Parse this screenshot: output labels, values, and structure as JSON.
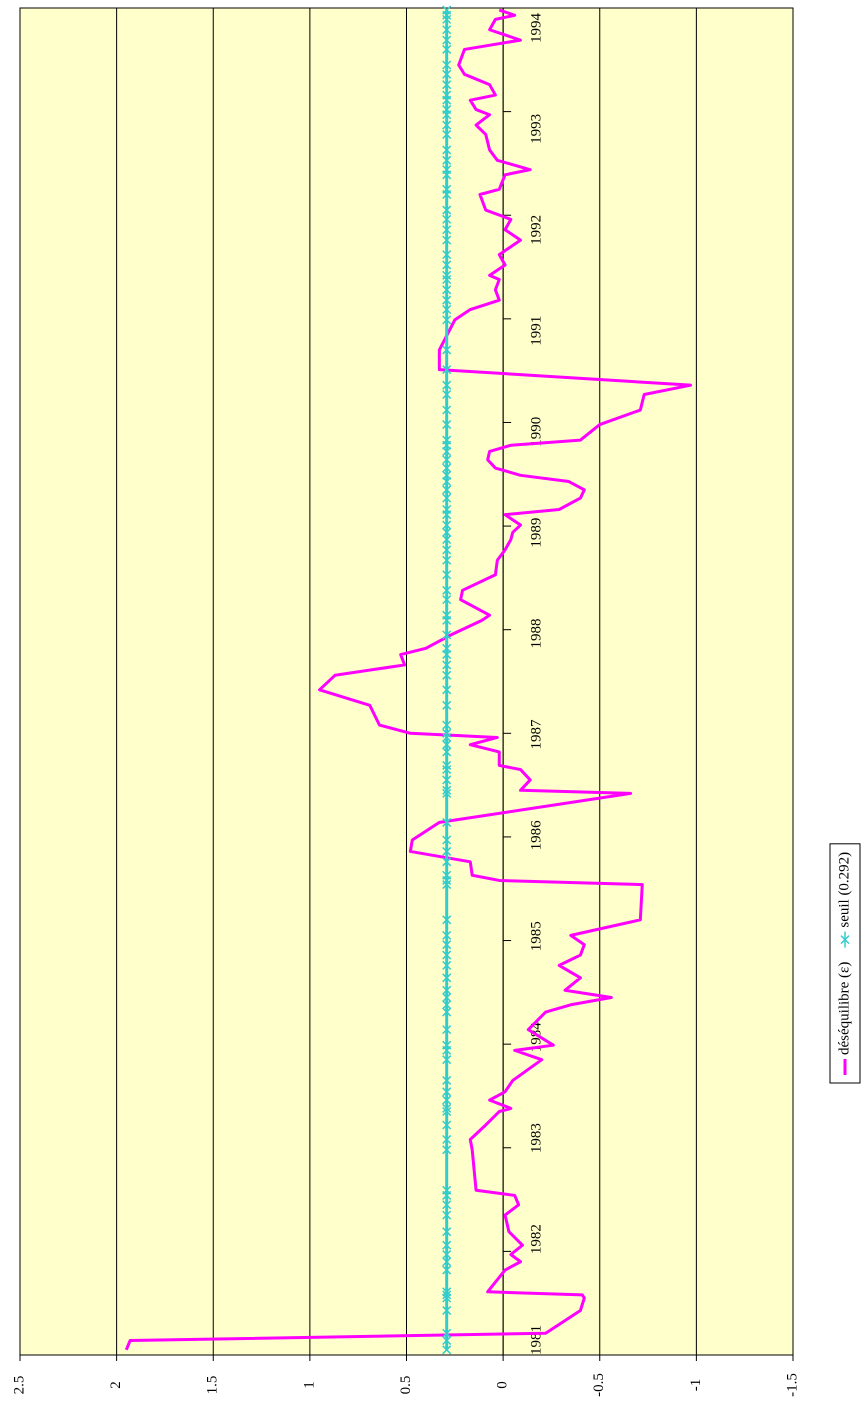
{
  "chart_data": {
    "type": "line",
    "orientation": "rotated",
    "x": [
      1981.05,
      1981.14,
      1981.21,
      1981.43,
      1981.55,
      1981.58,
      1981.61,
      1981.82,
      1981.9,
      1981.97,
      1982.06,
      1982.19,
      1982.35,
      1982.45,
      1982.54,
      1982.59,
      1982.98,
      1983.08,
      1983.22,
      1983.35,
      1983.38,
      1983.46,
      1983.54,
      1983.65,
      1983.85,
      1983.94,
      1983.99,
      1984.14,
      1984.31,
      1984.38,
      1984.45,
      1984.52,
      1984.64,
      1984.76,
      1984.86,
      1984.96,
      1985.05,
      1985.2,
      1985.54,
      1985.58,
      1985.63,
      1985.76,
      1985.86,
      1985.97,
      1986.14,
      1986.42,
      1986.45,
      1986.55,
      1986.65,
      1986.69,
      1986.82,
      1986.89,
      1986.96,
      1987.0,
      1987.08,
      1987.27,
      1987.42,
      1987.56,
      1987.66,
      1987.76,
      1987.82,
      1987.95,
      1988.09,
      1988.14,
      1988.29,
      1988.38,
      1988.53,
      1988.67,
      1988.77,
      1988.87,
      1988.94,
      1989.01,
      1989.11,
      1989.16,
      1989.27,
      1989.35,
      1989.43,
      1989.49,
      1989.56,
      1989.64,
      1989.72,
      1989.78,
      1989.83,
      1989.98,
      1990.12,
      1990.27,
      1990.36,
      1990.51,
      1990.7,
      1990.99,
      1991.09,
      1991.18,
      1991.28,
      1991.38,
      1991.42,
      1991.52,
      1991.62,
      1991.76,
      1991.86,
      1991.96,
      1992.05,
      1992.2,
      1992.25,
      1992.39,
      1992.44,
      1992.53,
      1992.63,
      1992.78,
      1992.87,
      1992.97,
      1993.02,
      1993.11,
      1993.16,
      1993.26,
      1993.36,
      1993.45,
      1993.6,
      1993.69,
      1993.79,
      1993.89,
      1993.93,
      1993.98
    ],
    "series": [
      {
        "name": "déséquilibre (ε)",
        "color": "#ff00ff",
        "marker": "none",
        "values": [
          1.95,
          1.93,
          -0.22,
          -0.4,
          -0.42,
          -0.41,
          0.08,
          -0.01,
          -0.09,
          -0.04,
          -0.1,
          -0.03,
          -0.01,
          -0.08,
          -0.06,
          0.14,
          0.16,
          0.17,
          0.09,
          0.02,
          -0.04,
          0.07,
          -0.01,
          -0.05,
          -0.2,
          -0.06,
          -0.26,
          -0.13,
          -0.22,
          -0.35,
          -0.56,
          -0.32,
          -0.4,
          -0.29,
          -0.4,
          -0.42,
          -0.35,
          -0.71,
          -0.72,
          0.02,
          0.16,
          0.17,
          0.48,
          0.47,
          0.33,
          -0.66,
          -0.09,
          -0.14,
          -0.09,
          0.02,
          0.02,
          0.17,
          0.03,
          0.48,
          0.64,
          0.69,
          0.95,
          0.87,
          0.51,
          0.53,
          0.4,
          0.27,
          0.11,
          0.07,
          0.22,
          0.21,
          0.04,
          0.03,
          -0.01,
          -0.04,
          -0.05,
          -0.09,
          -0.01,
          -0.29,
          -0.4,
          -0.42,
          -0.34,
          -0.09,
          0.04,
          0.08,
          0.07,
          -0.04,
          -0.4,
          -0.5,
          -0.71,
          -0.73,
          -0.97,
          0.33,
          0.33,
          0.25,
          0.17,
          0.02,
          0.04,
          0.02,
          0.07,
          -0.01,
          0.02,
          -0.09,
          -0.01,
          -0.04,
          0.09,
          0.12,
          0.02,
          -0.01,
          -0.14,
          0.03,
          0.07,
          0.09,
          0.14,
          0.07,
          0.14,
          0.17,
          0.04,
          0.07,
          0.2,
          0.23,
          0.2,
          -0.09,
          0.07,
          0.04,
          -0.06,
          0.02
        ]
      },
      {
        "name": "seuil (0.292)",
        "color": "#33cccc",
        "marker": "x",
        "values": [
          0.292,
          0.292,
          0.292,
          0.292,
          0.292,
          0.292,
          0.292,
          0.292,
          0.292,
          0.292,
          0.292,
          0.292,
          0.292,
          0.292,
          0.292,
          0.292,
          0.292,
          0.292,
          0.292,
          0.292,
          0.292,
          0.292,
          0.292,
          0.292,
          0.292,
          0.292,
          0.292,
          0.292,
          0.292,
          0.292,
          0.292,
          0.292,
          0.292,
          0.292,
          0.292,
          0.292,
          0.292,
          0.292,
          0.292,
          0.292,
          0.292,
          0.292,
          0.292,
          0.292,
          0.292,
          0.292,
          0.292,
          0.292,
          0.292,
          0.292,
          0.292,
          0.292,
          0.292,
          0.292,
          0.292,
          0.292,
          0.292,
          0.292,
          0.292,
          0.292,
          0.292,
          0.292,
          0.292,
          0.292,
          0.292,
          0.292,
          0.292,
          0.292,
          0.292,
          0.292,
          0.292,
          0.292,
          0.292,
          0.292,
          0.292,
          0.292,
          0.292,
          0.292,
          0.292,
          0.292,
          0.292,
          0.292,
          0.292,
          0.292,
          0.292,
          0.292,
          0.292,
          0.292,
          0.292,
          0.292,
          0.292,
          0.292,
          0.292,
          0.292,
          0.292,
          0.292,
          0.292,
          0.292,
          0.292,
          0.292,
          0.292,
          0.292,
          0.292,
          0.292,
          0.292,
          0.292,
          0.292,
          0.292,
          0.292,
          0.292,
          0.292,
          0.292,
          0.292,
          0.292,
          0.292,
          0.292,
          0.292,
          0.292,
          0.292,
          0.292,
          0.292,
          0.292
        ]
      }
    ],
    "xlim": [
      1981,
      1994
    ],
    "xticks": [
      1981,
      1982,
      1983,
      1984,
      1985,
      1986,
      1987,
      1988,
      1989,
      1990,
      1991,
      1992,
      1993,
      1994
    ],
    "ylim": [
      -1.5,
      2.5
    ],
    "yticks": [
      2.5,
      2,
      1.5,
      1,
      0.5,
      0,
      -0.5,
      -1,
      -1.5
    ],
    "grid": true,
    "background": "#ffffcc",
    "legend": "bottom-right"
  }
}
